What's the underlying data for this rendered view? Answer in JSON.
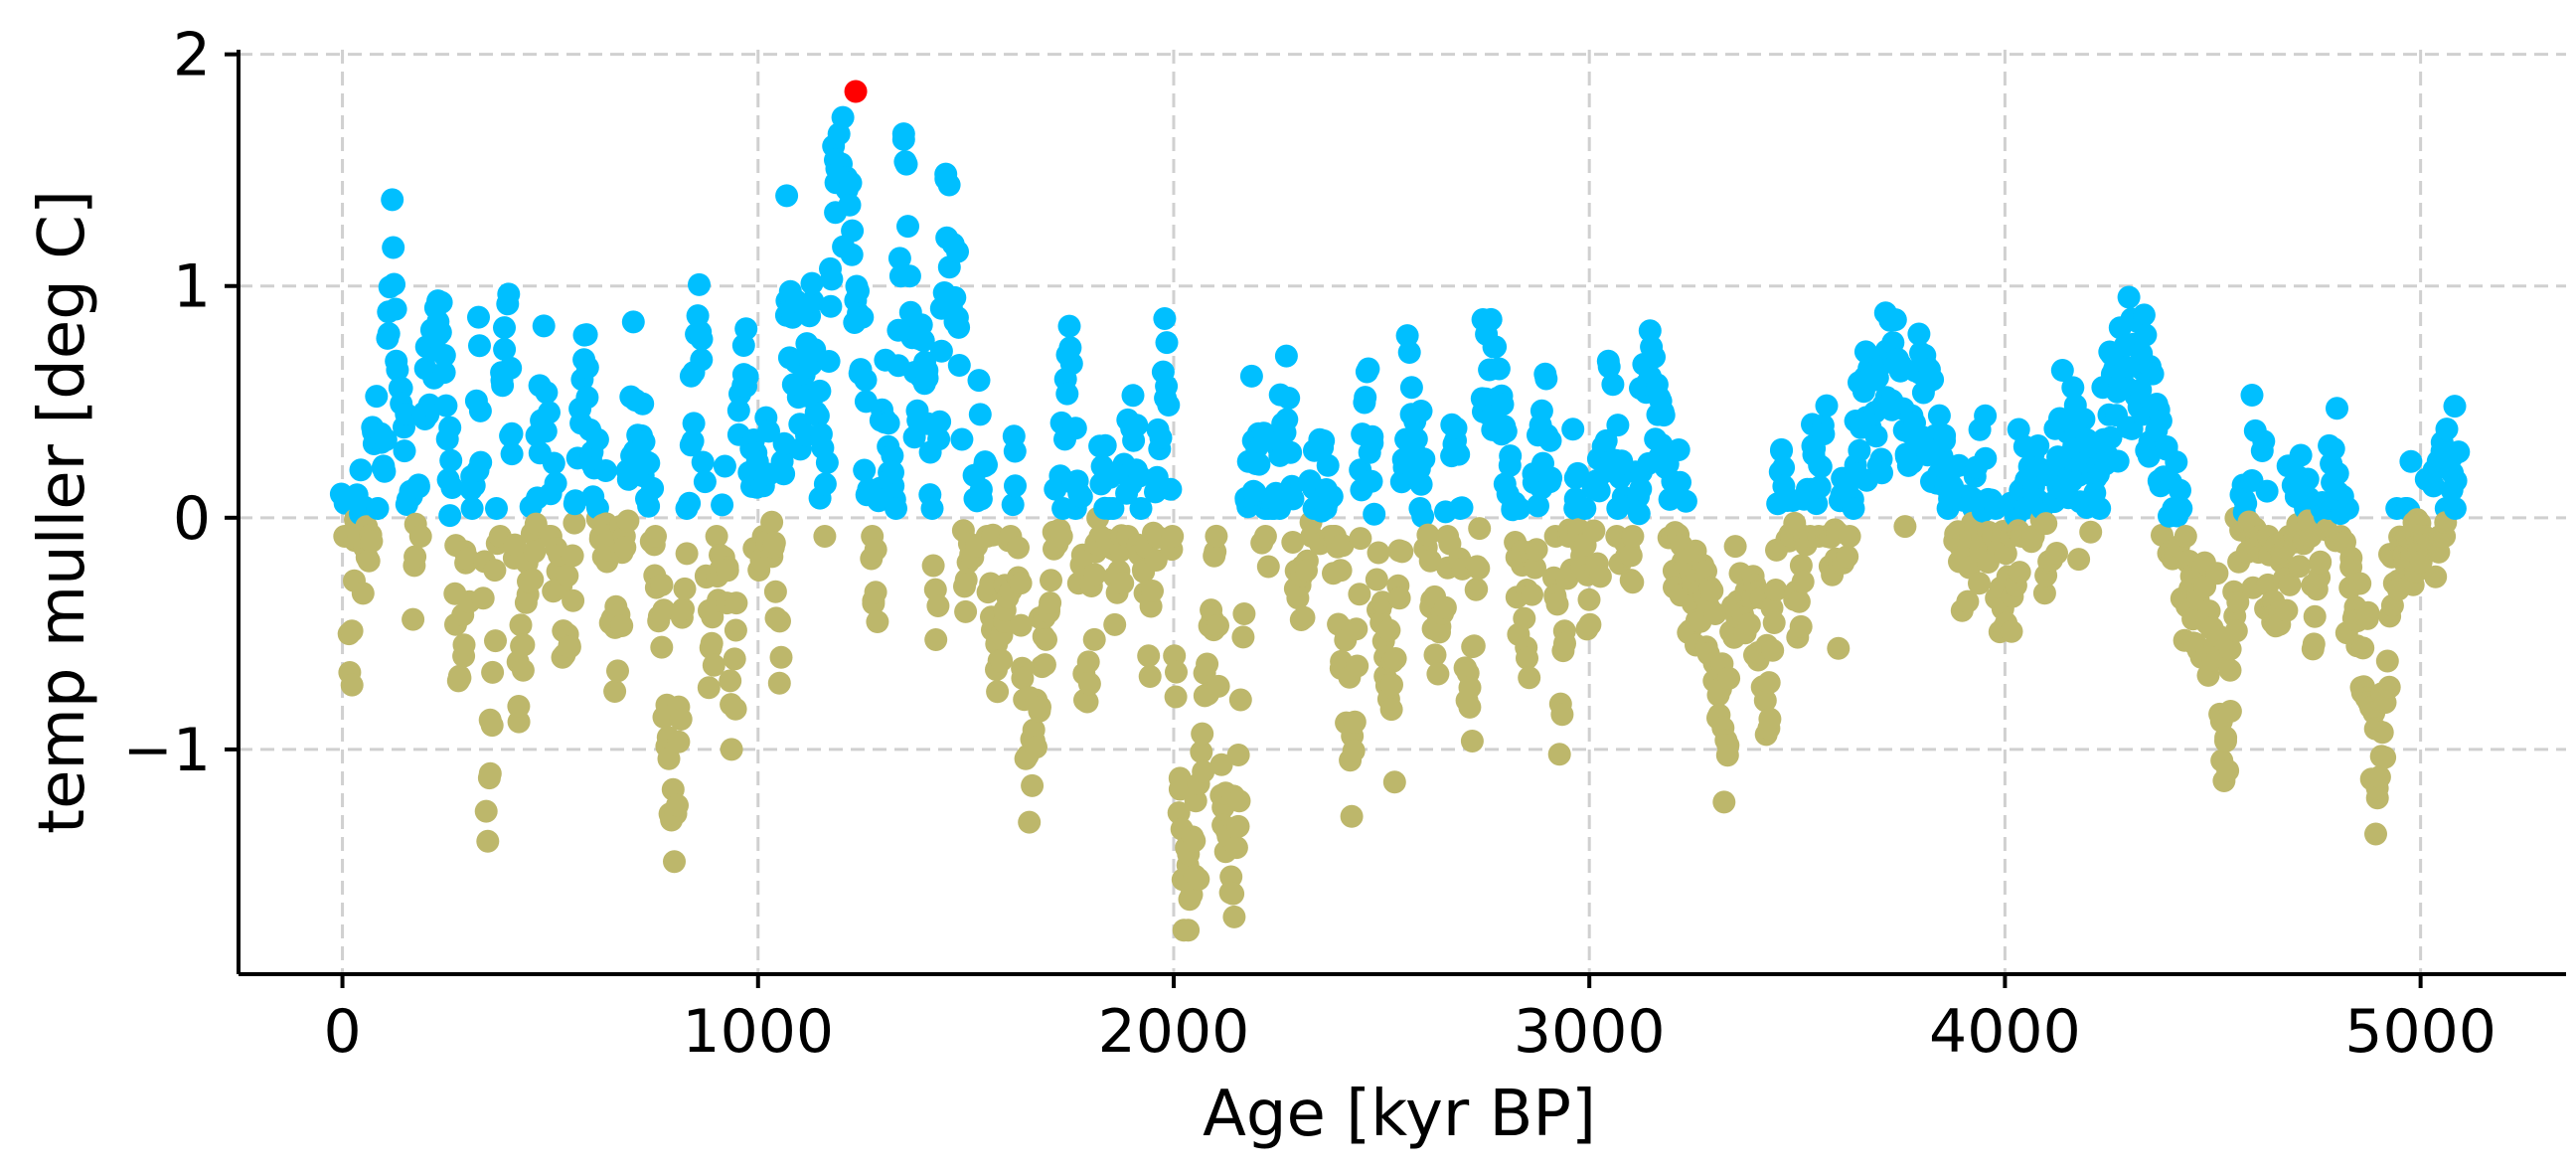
{
  "chart_data": {
    "type": "scatter",
    "title": "",
    "xlabel": "Age [kyr BP]",
    "ylabel": "temp muller [deg C]",
    "xlim": [
      -250,
      5350
    ],
    "ylim": [
      -1.97,
      2.02
    ],
    "xticks": [
      0,
      1000,
      2000,
      3000,
      4000,
      5000
    ],
    "xtick_labels": [
      "0",
      "1000",
      "2000",
      "3000",
      "4000",
      "5000"
    ],
    "yticks": [
      -1,
      0,
      1,
      2
    ],
    "ytick_labels": [
      "−1",
      "0",
      "1",
      "2"
    ],
    "grid": true,
    "colors": {
      "positive": "#00bfff",
      "negative": "#bdb76b",
      "max": "#ff0000"
    },
    "highlight": {
      "x": 1235,
      "y": 1.84
    },
    "anchors": [
      [
        0,
        0.35
      ],
      [
        20,
        -0.6
      ],
      [
        40,
        0.1
      ],
      [
        60,
        -0.25
      ],
      [
        80,
        0.45
      ],
      [
        100,
        0.15
      ],
      [
        120,
        1.5
      ],
      [
        130,
        0.75
      ],
      [
        150,
        0.3
      ],
      [
        170,
        -0.2
      ],
      [
        200,
        0.6
      ],
      [
        230,
        0.85
      ],
      [
        260,
        0.2
      ],
      [
        280,
        -0.7
      ],
      [
        300,
        -0.3
      ],
      [
        330,
        0.6
      ],
      [
        350,
        -1.3
      ],
      [
        380,
        0.3
      ],
      [
        400,
        0.85
      ],
      [
        420,
        -0.8
      ],
      [
        450,
        -0.3
      ],
      [
        480,
        0.55
      ],
      [
        500,
        0.1
      ],
      [
        540,
        -0.6
      ],
      [
        580,
        0.65
      ],
      [
        620,
        0.1
      ],
      [
        660,
        -0.55
      ],
      [
        700,
        0.6
      ],
      [
        740,
        0.15
      ],
      [
        780,
        -0.8
      ],
      [
        800,
        -1.45
      ],
      [
        830,
        0.1
      ],
      [
        860,
        0.95
      ],
      [
        880,
        -0.7
      ],
      [
        900,
        -0.3
      ],
      [
        920,
        0.1
      ],
      [
        940,
        -1.2
      ],
      [
        960,
        1.0
      ],
      [
        980,
        0.4
      ],
      [
        1000,
        -0.1
      ],
      [
        1030,
        0.25
      ],
      [
        1050,
        -0.8
      ],
      [
        1070,
        1.05
      ],
      [
        1100,
        0.4
      ],
      [
        1130,
        0.85
      ],
      [
        1160,
        0.1
      ],
      [
        1190,
        1.6
      ],
      [
        1220,
        1.3
      ],
      [
        1250,
        0.7
      ],
      [
        1280,
        -0.3
      ],
      [
        1300,
        0.5
      ],
      [
        1330,
        0.2
      ],
      [
        1350,
        1.7
      ],
      [
        1380,
        0.4
      ],
      [
        1400,
        0.6
      ],
      [
        1430,
        -0.4
      ],
      [
        1450,
        1.4
      ],
      [
        1480,
        0.9
      ],
      [
        1500,
        -0.3
      ],
      [
        1540,
        0.4
      ],
      [
        1580,
        -0.8
      ],
      [
        1620,
        0.2
      ],
      [
        1650,
        -1.2
      ],
      [
        1700,
        -0.4
      ],
      [
        1750,
        0.6
      ],
      [
        1790,
        -0.7
      ],
      [
        1830,
        0.3
      ],
      [
        1870,
        -0.3
      ],
      [
        1900,
        0.45
      ],
      [
        1940,
        -0.5
      ],
      [
        1980,
        0.9
      ],
      [
        2010,
        -1.2
      ],
      [
        2040,
        -1.7
      ],
      [
        2070,
        -0.9
      ],
      [
        2100,
        -0.2
      ],
      [
        2120,
        -1.4
      ],
      [
        2150,
        -1.6
      ],
      [
        2180,
        0.35
      ],
      [
        2230,
        0.0
      ],
      [
        2270,
        0.55
      ],
      [
        2300,
        -0.4
      ],
      [
        2350,
        0.25
      ],
      [
        2400,
        -0.2
      ],
      [
        2430,
        -1.05
      ],
      [
        2460,
        0.45
      ],
      [
        2500,
        -0.3
      ],
      [
        2530,
        -0.95
      ],
      [
        2560,
        0.6
      ],
      [
        2600,
        0.1
      ],
      [
        2640,
        -0.6
      ],
      [
        2680,
        0.45
      ],
      [
        2710,
        -1.0
      ],
      [
        2750,
        0.7
      ],
      [
        2800,
        0.3
      ],
      [
        2850,
        -0.5
      ],
      [
        2900,
        0.6
      ],
      [
        2930,
        -0.9
      ],
      [
        2960,
        0.2
      ],
      [
        3000,
        -0.3
      ],
      [
        3050,
        0.5
      ],
      [
        3100,
        -0.2
      ],
      [
        3150,
        0.75
      ],
      [
        3200,
        0.0
      ],
      [
        3250,
        -0.35
      ],
      [
        3300,
        -0.5
      ],
      [
        3330,
        -1.1
      ],
      [
        3350,
        -0.3
      ],
      [
        3400,
        -0.4
      ],
      [
        3430,
        -0.9
      ],
      [
        3460,
        0.3
      ],
      [
        3500,
        -0.35
      ],
      [
        3550,
        0.3
      ],
      [
        3600,
        -0.2
      ],
      [
        3650,
        0.45
      ],
      [
        3700,
        0.4
      ],
      [
        3730,
        0.85
      ],
      [
        3760,
        0.25
      ],
      [
        3800,
        0.55
      ],
      [
        3850,
        0.2
      ],
      [
        3900,
        -0.2
      ],
      [
        3950,
        0.1
      ],
      [
        4000,
        -0.3
      ],
      [
        4050,
        0.2
      ],
      [
        4100,
        -0.1
      ],
      [
        4150,
        0.35
      ],
      [
        4200,
        0.1
      ],
      [
        4250,
        0.4
      ],
      [
        4300,
        0.8
      ],
      [
        4350,
        0.5
      ],
      [
        4400,
        0.05
      ],
      [
        4450,
        -0.3
      ],
      [
        4500,
        -0.45
      ],
      [
        4530,
        -1.05
      ],
      [
        4560,
        -0.2
      ],
      [
        4600,
        0.15
      ],
      [
        4650,
        -0.35
      ],
      [
        4700,
        0.1
      ],
      [
        4750,
        -0.3
      ],
      [
        4800,
        0.25
      ],
      [
        4840,
        -0.3
      ],
      [
        4870,
        -0.7
      ],
      [
        4900,
        -1.1
      ],
      [
        4930,
        -0.3
      ],
      [
        4970,
        0.0
      ],
      [
        5000,
        -0.2
      ],
      [
        5050,
        0.1
      ],
      [
        5090,
        0.2
      ]
    ],
    "n_points": 1700,
    "x_range": [
      0,
      5090
    ]
  }
}
